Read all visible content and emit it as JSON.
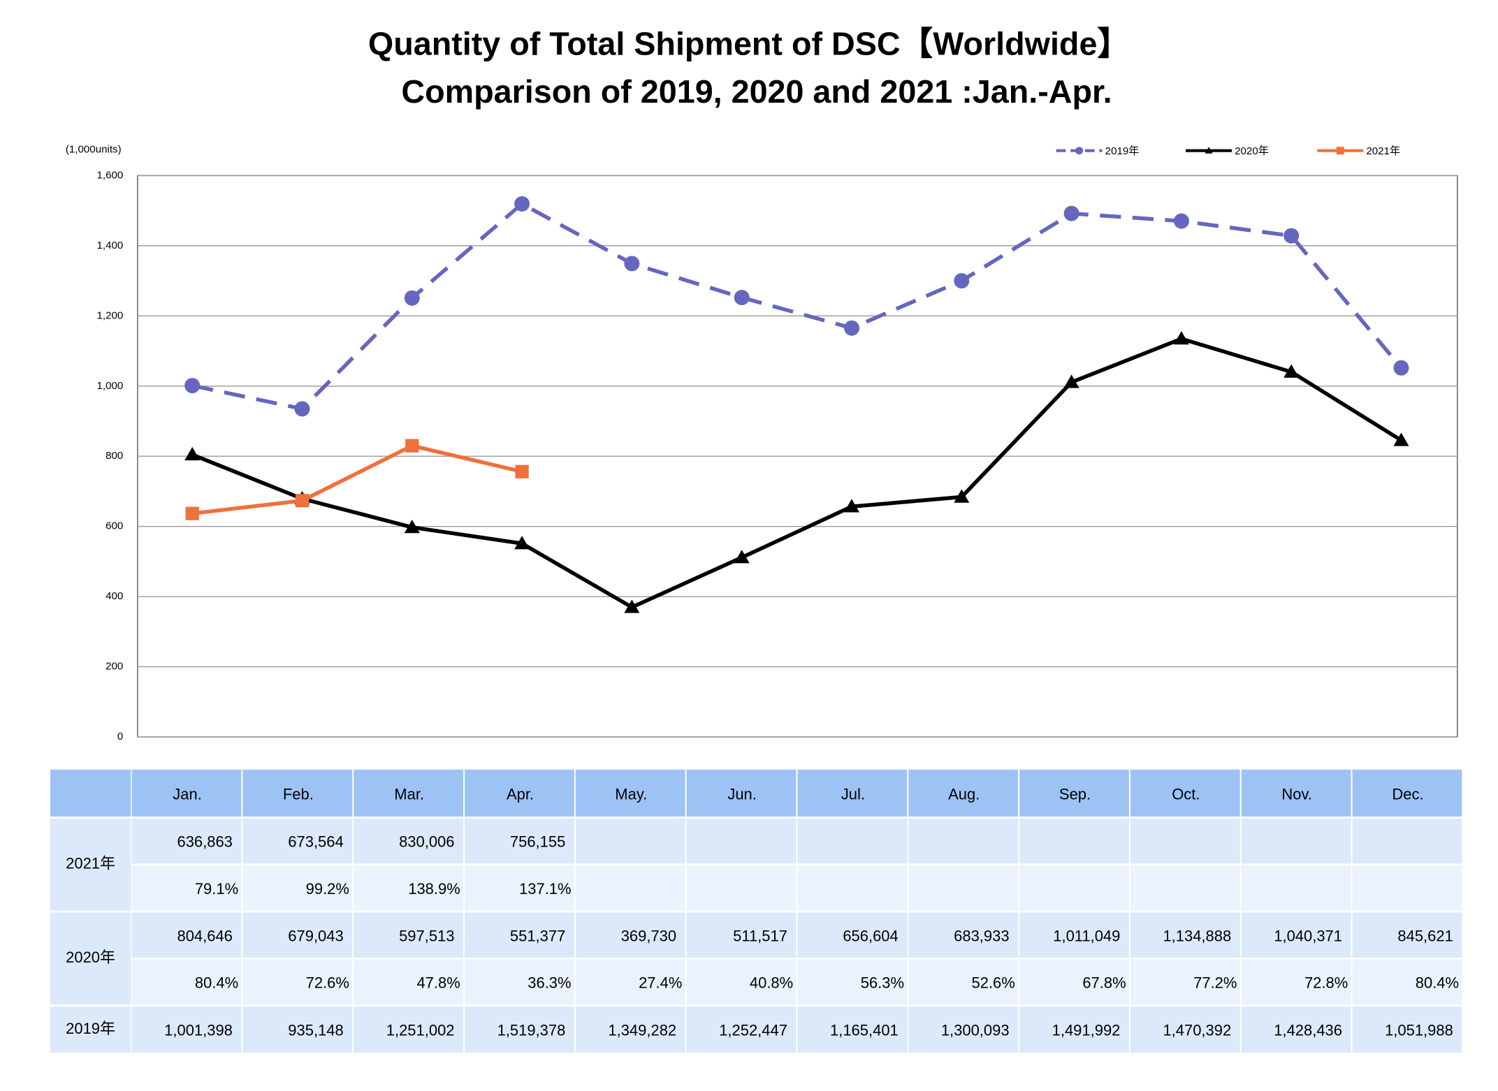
{
  "chart_data": {
    "type": "line",
    "title": "Quantity of Total Shipment of DSC【Worldwide】",
    "subtitle": "Comparison of 2019, 2020 and 2021 :Jan.-Apr.",
    "y_axis_label": "(1,000units)",
    "categories": [
      "Jan.",
      "Feb.",
      "Mar.",
      "Apr.",
      "May.",
      "Jun.",
      "Jul.",
      "Aug.",
      "Sep.",
      "Oct.",
      "Nov.",
      "Dec."
    ],
    "series": [
      {
        "name": "2019年",
        "color": "#6466c0",
        "values": [
          1001.398,
          935.148,
          1251.002,
          1519.378,
          1349.282,
          1252.447,
          1165.401,
          1300.093,
          1491.992,
          1470.392,
          1428.436,
          1051.988
        ]
      },
      {
        "name": "2020年",
        "color": "#000000",
        "values": [
          804.646,
          679.043,
          597.513,
          551.377,
          369.73,
          511.517,
          656.604,
          683.933,
          1011.049,
          1134.888,
          1040.371,
          845.621
        ]
      },
      {
        "name": "2021年",
        "color": "#f0703a",
        "values": [
          636.863,
          673.564,
          830.006,
          756.155,
          null,
          null,
          null,
          null,
          null,
          null,
          null,
          null
        ]
      }
    ],
    "ylim": [
      0,
      1600
    ],
    "yticks": [
      0,
      200,
      400,
      600,
      800,
      {
        "value": 1000,
        "label": "1,000"
      },
      {
        "value": 1200,
        "label": "1,200"
      },
      {
        "value": 1400,
        "label": "1,400"
      },
      {
        "value": 1600,
        "label": "1,600"
      }
    ],
    "grid": true
  },
  "table": {
    "rows": [
      {
        "amounts": [
          "636,863",
          "673,564",
          "830,006",
          "756,155"
        ],
        "ratios": [
          "79.1%",
          "99.2%",
          "138.9%",
          "137.1%"
        ]
      },
      {
        "amounts": [
          "804,646",
          "679,043",
          "597,513",
          "551,377",
          "369,730",
          "511,517",
          "656,604",
          "683,933",
          "1,011,049",
          "1,134,888",
          "1,040,371",
          "845,621"
        ],
        "ratios": [
          "80.4%",
          "72.6%",
          "47.8%",
          "36.3%",
          "27.4%",
          "40.8%",
          "56.3%",
          "52.6%",
          "67.8%",
          "77.2%",
          "72.8%",
          "80.4%"
        ]
      },
      {
        "amounts": [
          "1,001,398",
          "935,148",
          "1,251,002",
          "1,519,378",
          "1,349,282",
          "1,252,447",
          "1,165,401",
          "1,300,093",
          "1,491,992",
          "1,470,392",
          "1,428,436",
          "1,051,988"
        ]
      }
    ]
  }
}
